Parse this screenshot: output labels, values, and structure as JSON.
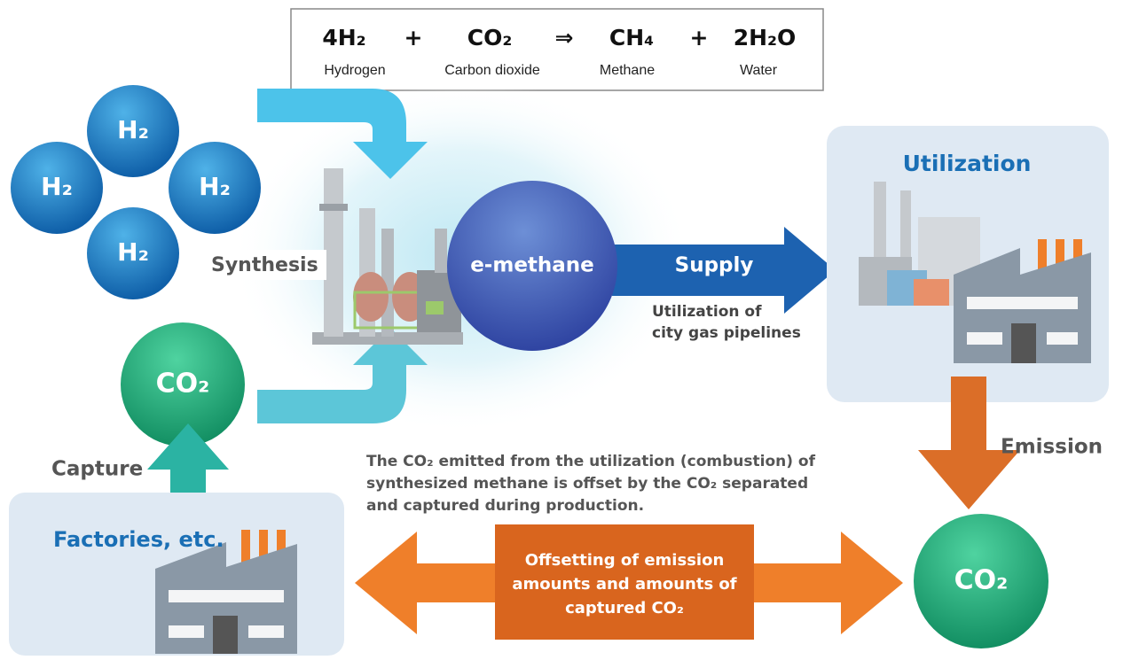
{
  "equation": {
    "terms": [
      {
        "formula": "4H₂",
        "name": "Hydrogen"
      },
      {
        "formula": "CO₂",
        "name": "Carbon dioxide"
      },
      {
        "formula": "CH₄",
        "name": "Methane"
      },
      {
        "formula": "2H₂O",
        "name": "Water"
      }
    ],
    "operators": [
      "+",
      "⇒",
      "+"
    ]
  },
  "hydrogen_molecules": [
    "H₂",
    "H₂",
    "H₂",
    "H₂"
  ],
  "synthesis": "Synthesis",
  "product": "e-methane",
  "supply": {
    "label": "Supply",
    "note": [
      "Utilization of",
      "city gas pipelines"
    ]
  },
  "utilization": "Utilization",
  "emission": "Emission",
  "emitted_co2": "CO₂",
  "captured_co2": "CO₂",
  "capture": "Capture",
  "source": "Factories, etc.",
  "explanation": [
    "The CO₂ emitted from the utilization (combustion) of",
    "synthesized methane is offset by the CO₂ separated",
    "and captured during production."
  ],
  "offsetting": [
    "Offsetting of emission",
    "amounts and amounts of",
    "captured CO₂"
  ]
}
